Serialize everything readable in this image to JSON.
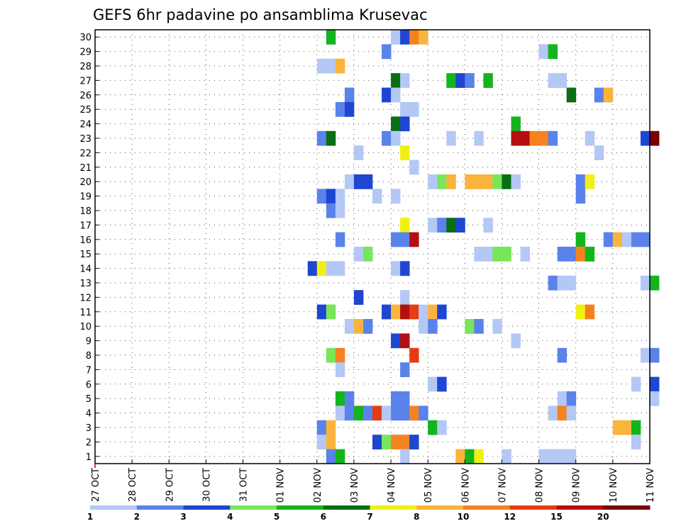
{
  "chart_data": {
    "type": "heatmap",
    "title": "GEFS 6hr padavine po ansamblima Krusevac",
    "xlabel": "",
    "ylabel": "",
    "x_tick_labels": [
      "27 OCT",
      "28 OCT",
      "29 OCT",
      "30 OCT",
      "31 OCT",
      "01 NOV",
      "02 NOV",
      "03 NOV",
      "04 NOV",
      "05 NOV",
      "06 NOV",
      "07 NOV",
      "08 NOV",
      "09 NOV",
      "10 NOV",
      "11 NOV"
    ],
    "xlim_days": [
      0,
      15
    ],
    "ylim": [
      0.5,
      30.5
    ],
    "y_ticks": [
      1,
      2,
      3,
      4,
      5,
      6,
      7,
      8,
      9,
      10,
      11,
      12,
      13,
      14,
      15,
      16,
      17,
      18,
      19,
      20,
      21,
      22,
      23,
      24,
      25,
      26,
      27,
      28,
      29,
      30
    ],
    "grid": true,
    "legend_position": "bottom",
    "legend_levels": [
      "1",
      "2",
      "3",
      "4",
      "5",
      "6",
      "7",
      "8",
      "10",
      "12",
      "15",
      "20"
    ],
    "colors": [
      "#b4c8f5",
      "#5a82eb",
      "#1e46d2",
      "#78e65a",
      "#14b41e",
      "#0a6e14",
      "#f0f014",
      "#fab43c",
      "#f58220",
      "#e63c14",
      "#b40f0f",
      "#780000"
    ],
    "cells": [
      [
        30,
        6.25,
        4
      ],
      [
        30,
        8.0,
        0
      ],
      [
        30,
        8.25,
        2
      ],
      [
        30,
        8.5,
        8
      ],
      [
        30,
        8.75,
        7
      ],
      [
        29,
        7.75,
        1
      ],
      [
        29,
        12.0,
        0
      ],
      [
        29,
        12.25,
        4
      ],
      [
        28,
        6.0,
        0
      ],
      [
        28,
        6.25,
        0
      ],
      [
        28,
        6.5,
        7
      ],
      [
        27,
        8.0,
        5
      ],
      [
        27,
        8.25,
        0
      ],
      [
        27,
        9.5,
        4
      ],
      [
        27,
        9.75,
        2
      ],
      [
        27,
        10.0,
        1
      ],
      [
        27,
        10.5,
        4
      ],
      [
        27,
        12.25,
        0
      ],
      [
        27,
        12.5,
        0
      ],
      [
        26,
        6.75,
        1
      ],
      [
        26,
        7.75,
        2
      ],
      [
        26,
        8.0,
        0
      ],
      [
        26,
        12.75,
        5
      ],
      [
        26,
        13.5,
        1
      ],
      [
        26,
        13.75,
        7
      ],
      [
        25,
        6.5,
        1
      ],
      [
        25,
        6.75,
        2
      ],
      [
        25,
        8.25,
        0
      ],
      [
        25,
        8.5,
        0
      ],
      [
        24,
        8.0,
        5
      ],
      [
        24,
        8.25,
        2
      ],
      [
        24,
        11.25,
        4
      ],
      [
        23,
        6.0,
        1
      ],
      [
        23,
        6.25,
        5
      ],
      [
        23,
        7.75,
        1
      ],
      [
        23,
        8.0,
        0
      ],
      [
        23,
        9.5,
        0
      ],
      [
        23,
        10.25,
        0
      ],
      [
        23,
        11.25,
        10
      ],
      [
        23,
        11.5,
        10
      ],
      [
        23,
        11.75,
        8
      ],
      [
        23,
        12.0,
        8
      ],
      [
        23,
        12.25,
        1
      ],
      [
        23,
        13.25,
        0
      ],
      [
        23,
        14.75,
        2
      ],
      [
        23,
        15.0,
        11
      ],
      [
        22,
        7.0,
        0
      ],
      [
        22,
        8.25,
        6
      ],
      [
        22,
        13.5,
        0
      ],
      [
        21,
        8.5,
        0
      ],
      [
        20,
        6.75,
        0
      ],
      [
        20,
        7.0,
        2
      ],
      [
        20,
        7.25,
        2
      ],
      [
        20,
        9.0,
        0
      ],
      [
        20,
        9.25,
        3
      ],
      [
        20,
        9.5,
        7
      ],
      [
        20,
        10.0,
        7
      ],
      [
        20,
        10.25,
        7
      ],
      [
        20,
        10.5,
        7
      ],
      [
        20,
        10.75,
        3
      ],
      [
        20,
        11.0,
        5
      ],
      [
        20,
        11.25,
        0
      ],
      [
        20,
        13.0,
        1
      ],
      [
        20,
        13.25,
        6
      ],
      [
        19,
        6.0,
        1
      ],
      [
        19,
        6.25,
        2
      ],
      [
        19,
        6.5,
        0
      ],
      [
        19,
        7.5,
        0
      ],
      [
        19,
        8.0,
        0
      ],
      [
        19,
        13.0,
        1
      ],
      [
        18,
        6.25,
        1
      ],
      [
        18,
        6.5,
        0
      ],
      [
        17,
        8.25,
        6
      ],
      [
        17,
        9.0,
        0
      ],
      [
        17,
        9.25,
        1
      ],
      [
        17,
        9.5,
        5
      ],
      [
        17,
        9.75,
        2
      ],
      [
        17,
        10.5,
        0
      ],
      [
        16,
        6.5,
        1
      ],
      [
        16,
        8.0,
        1
      ],
      [
        16,
        8.25,
        1
      ],
      [
        16,
        8.5,
        10
      ],
      [
        16,
        13.0,
        4
      ],
      [
        16,
        13.75,
        1
      ],
      [
        16,
        14.0,
        7
      ],
      [
        16,
        14.25,
        0
      ],
      [
        16,
        14.5,
        1
      ],
      [
        16,
        14.75,
        1
      ],
      [
        15,
        7.0,
        0
      ],
      [
        15,
        7.25,
        3
      ],
      [
        15,
        10.25,
        0
      ],
      [
        15,
        10.5,
        0
      ],
      [
        15,
        10.75,
        3
      ],
      [
        15,
        11.0,
        3
      ],
      [
        15,
        11.5,
        0
      ],
      [
        15,
        12.5,
        1
      ],
      [
        15,
        12.75,
        1
      ],
      [
        15,
        13.0,
        8
      ],
      [
        15,
        13.25,
        4
      ],
      [
        14,
        5.75,
        2
      ],
      [
        14,
        6.0,
        6
      ],
      [
        14,
        6.25,
        0
      ],
      [
        14,
        6.5,
        0
      ],
      [
        14,
        8.0,
        0
      ],
      [
        14,
        8.25,
        2
      ],
      [
        13,
        12.25,
        1
      ],
      [
        13,
        12.5,
        0
      ],
      [
        13,
        12.75,
        0
      ],
      [
        13,
        14.75,
        0
      ],
      [
        13,
        15.0,
        4
      ],
      [
        12,
        7.0,
        2
      ],
      [
        12,
        8.25,
        0
      ],
      [
        11,
        6.0,
        2
      ],
      [
        11,
        6.25,
        3
      ],
      [
        11,
        7.75,
        2
      ],
      [
        11,
        8.0,
        7
      ],
      [
        11,
        8.25,
        10
      ],
      [
        11,
        8.5,
        9
      ],
      [
        11,
        8.75,
        0
      ],
      [
        11,
        9.0,
        7
      ],
      [
        11,
        9.25,
        2
      ],
      [
        11,
        13.0,
        6
      ],
      [
        11,
        13.25,
        8
      ],
      [
        10,
        6.75,
        0
      ],
      [
        10,
        7.0,
        7
      ],
      [
        10,
        7.25,
        1
      ],
      [
        10,
        8.75,
        0
      ],
      [
        10,
        9.0,
        1
      ],
      [
        10,
        10.0,
        3
      ],
      [
        10,
        10.25,
        1
      ],
      [
        10,
        10.75,
        0
      ],
      [
        9,
        8.0,
        2
      ],
      [
        9,
        8.25,
        10
      ],
      [
        9,
        11.25,
        0
      ],
      [
        8,
        6.25,
        3
      ],
      [
        8,
        6.5,
        8
      ],
      [
        8,
        8.5,
        9
      ],
      [
        8,
        12.5,
        1
      ],
      [
        8,
        14.75,
        0
      ],
      [
        8,
        15.0,
        1
      ],
      [
        7,
        6.5,
        0
      ],
      [
        7,
        8.25,
        1
      ],
      [
        6,
        9.0,
        0
      ],
      [
        6,
        9.25,
        2
      ],
      [
        6,
        14.5,
        0
      ],
      [
        6,
        15.0,
        2
      ],
      [
        5,
        6.5,
        4
      ],
      [
        5,
        6.75,
        1
      ],
      [
        5,
        8.0,
        1
      ],
      [
        5,
        8.25,
        1
      ],
      [
        5,
        12.5,
        0
      ],
      [
        5,
        12.75,
        1
      ],
      [
        5,
        15.0,
        0
      ],
      [
        4,
        6.5,
        0
      ],
      [
        4,
        6.75,
        1
      ],
      [
        4,
        7.0,
        4
      ],
      [
        4,
        7.25,
        1
      ],
      [
        4,
        7.5,
        9
      ],
      [
        4,
        7.75,
        0
      ],
      [
        4,
        8.0,
        1
      ],
      [
        4,
        8.25,
        1
      ],
      [
        4,
        8.5,
        8
      ],
      [
        4,
        8.75,
        1
      ],
      [
        4,
        12.25,
        0
      ],
      [
        4,
        12.5,
        8
      ],
      [
        4,
        12.75,
        0
      ],
      [
        3,
        6.0,
        1
      ],
      [
        3,
        6.25,
        7
      ],
      [
        3,
        9.0,
        4
      ],
      [
        3,
        9.25,
        0
      ],
      [
        3,
        14.0,
        7
      ],
      [
        3,
        14.25,
        7
      ],
      [
        3,
        14.5,
        4
      ],
      [
        2,
        6.0,
        0
      ],
      [
        2,
        6.25,
        7
      ],
      [
        2,
        7.5,
        2
      ],
      [
        2,
        7.75,
        3
      ],
      [
        2,
        8.0,
        8
      ],
      [
        2,
        8.25,
        8
      ],
      [
        2,
        8.5,
        2
      ],
      [
        2,
        14.5,
        0
      ],
      [
        1,
        6.25,
        1
      ],
      [
        1,
        6.5,
        4
      ],
      [
        1,
        8.25,
        0
      ],
      [
        1,
        9.75,
        7
      ],
      [
        1,
        10.0,
        4
      ],
      [
        1,
        10.25,
        6
      ],
      [
        1,
        11.0,
        0
      ],
      [
        1,
        12.0,
        0
      ],
      [
        1,
        12.25,
        0
      ],
      [
        1,
        12.5,
        0
      ],
      [
        1,
        12.75,
        0
      ]
    ]
  }
}
